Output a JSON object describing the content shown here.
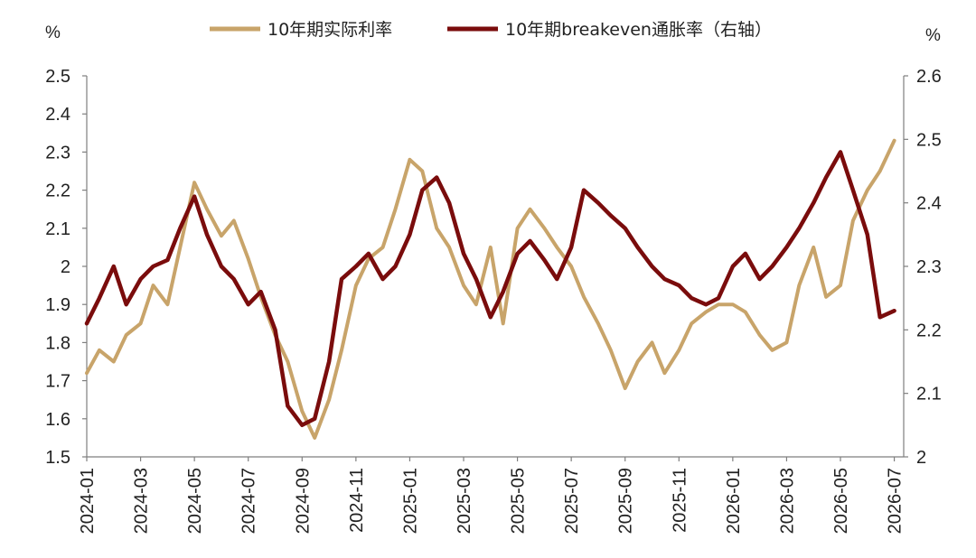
{
  "chart_data": {
    "type": "line",
    "left_unit": "%",
    "right_unit": "%",
    "y_left": {
      "min": 1.5,
      "max": 2.5,
      "ticks": [
        "1.5",
        "1.6",
        "1.7",
        "1.8",
        "1.9",
        "2",
        "2.1",
        "2.2",
        "2.3",
        "2.4",
        "2.5"
      ]
    },
    "y_right": {
      "min": 2.0,
      "max": 2.6,
      "ticks": [
        "2",
        "2.1",
        "2.2",
        "2.3",
        "2.4",
        "2.5",
        "2.6"
      ]
    },
    "x_ticks": [
      "2024-01",
      "2024-03",
      "2024-05",
      "2024-07",
      "2024-09",
      "2024-11",
      "2025-01",
      "2025-03",
      "2025-05",
      "2025-07",
      "2025-09",
      "2025-11",
      "2026-01",
      "2026-03",
      "2026-05",
      "2026-07"
    ],
    "x_range": [
      "2024-01",
      "2026-07"
    ],
    "series": [
      {
        "name": "10年期实际利率",
        "axis": "left",
        "color": "#c8a46a",
        "points": [
          [
            "2024-01",
            1.72
          ],
          [
            "2024-01-15",
            1.78
          ],
          [
            "2024-02",
            1.75
          ],
          [
            "2024-02-15",
            1.82
          ],
          [
            "2024-03",
            1.85
          ],
          [
            "2024-03-15",
            1.95
          ],
          [
            "2024-04",
            1.9
          ],
          [
            "2024-04-15",
            2.05
          ],
          [
            "2024-05",
            2.22
          ],
          [
            "2024-05-15",
            2.15
          ],
          [
            "2024-06",
            2.08
          ],
          [
            "2024-06-15",
            2.12
          ],
          [
            "2024-07",
            2.02
          ],
          [
            "2024-07-15",
            1.92
          ],
          [
            "2024-08",
            1.82
          ],
          [
            "2024-08-15",
            1.75
          ],
          [
            "2024-09",
            1.62
          ],
          [
            "2024-09-15",
            1.55
          ],
          [
            "2024-10",
            1.65
          ],
          [
            "2024-10-15",
            1.78
          ],
          [
            "2024-11",
            1.95
          ],
          [
            "2024-11-15",
            2.02
          ],
          [
            "2024-12",
            2.05
          ],
          [
            "2024-12-15",
            2.15
          ],
          [
            "2025-01",
            2.28
          ],
          [
            "2025-01-15",
            2.25
          ],
          [
            "2025-02",
            2.1
          ],
          [
            "2025-02-15",
            2.05
          ],
          [
            "2025-03",
            1.95
          ],
          [
            "2025-03-15",
            1.9
          ],
          [
            "2025-04",
            2.05
          ],
          [
            "2025-04-15",
            1.85
          ],
          [
            "2025-05",
            2.1
          ],
          [
            "2025-05-15",
            2.15
          ],
          [
            "2025-06",
            2.1
          ],
          [
            "2025-06-15",
            2.05
          ],
          [
            "2025-07",
            2.0
          ],
          [
            "2025-07-15",
            1.92
          ],
          [
            "2025-08",
            1.85
          ],
          [
            "2025-08-15",
            1.78
          ],
          [
            "2025-09",
            1.68
          ],
          [
            "2025-09-15",
            1.75
          ],
          [
            "2025-10",
            1.8
          ],
          [
            "2025-10-15",
            1.72
          ],
          [
            "2025-11",
            1.78
          ],
          [
            "2025-11-15",
            1.85
          ],
          [
            "2025-12",
            1.88
          ],
          [
            "2025-12-15",
            1.9
          ],
          [
            "2026-01",
            1.9
          ],
          [
            "2026-01-15",
            1.88
          ],
          [
            "2026-02",
            1.82
          ],
          [
            "2026-02-15",
            1.78
          ],
          [
            "2026-03",
            1.8
          ],
          [
            "2026-03-15",
            1.95
          ],
          [
            "2026-04",
            2.05
          ],
          [
            "2026-04-15",
            1.92
          ],
          [
            "2026-05",
            1.95
          ],
          [
            "2026-05-15",
            2.12
          ],
          [
            "2026-06",
            2.2
          ],
          [
            "2026-06-15",
            2.25
          ],
          [
            "2026-07",
            2.33
          ]
        ]
      },
      {
        "name": "10年期breakeven通胀率（右轴）",
        "axis": "right",
        "color": "#7a0c0c",
        "points": [
          [
            "2024-01",
            2.21
          ],
          [
            "2024-01-15",
            2.25
          ],
          [
            "2024-02",
            2.3
          ],
          [
            "2024-02-15",
            2.24
          ],
          [
            "2024-03",
            2.28
          ],
          [
            "2024-03-15",
            2.3
          ],
          [
            "2024-04",
            2.31
          ],
          [
            "2024-04-15",
            2.36
          ],
          [
            "2024-05",
            2.41
          ],
          [
            "2024-05-15",
            2.35
          ],
          [
            "2024-06",
            2.3
          ],
          [
            "2024-06-15",
            2.28
          ],
          [
            "2024-07",
            2.24
          ],
          [
            "2024-07-15",
            2.26
          ],
          [
            "2024-08",
            2.2
          ],
          [
            "2024-08-15",
            2.08
          ],
          [
            "2024-09",
            2.05
          ],
          [
            "2024-09-15",
            2.06
          ],
          [
            "2024-10",
            2.15
          ],
          [
            "2024-10-15",
            2.28
          ],
          [
            "2024-11",
            2.3
          ],
          [
            "2024-11-15",
            2.32
          ],
          [
            "2024-12",
            2.28
          ],
          [
            "2024-12-15",
            2.3
          ],
          [
            "2025-01",
            2.35
          ],
          [
            "2025-01-15",
            2.42
          ],
          [
            "2025-02",
            2.44
          ],
          [
            "2025-02-15",
            2.4
          ],
          [
            "2025-03",
            2.32
          ],
          [
            "2025-03-15",
            2.28
          ],
          [
            "2025-04",
            2.22
          ],
          [
            "2025-04-15",
            2.26
          ],
          [
            "2025-05",
            2.32
          ],
          [
            "2025-05-15",
            2.34
          ],
          [
            "2025-06",
            2.31
          ],
          [
            "2025-06-15",
            2.28
          ],
          [
            "2025-07",
            2.33
          ],
          [
            "2025-07-15",
            2.42
          ],
          [
            "2025-08",
            2.4
          ],
          [
            "2025-08-15",
            2.38
          ],
          [
            "2025-09",
            2.36
          ],
          [
            "2025-09-15",
            2.33
          ],
          [
            "2025-10",
            2.3
          ],
          [
            "2025-10-15",
            2.28
          ],
          [
            "2025-11",
            2.27
          ],
          [
            "2025-11-15",
            2.25
          ],
          [
            "2025-12",
            2.24
          ],
          [
            "2025-12-15",
            2.25
          ],
          [
            "2026-01",
            2.3
          ],
          [
            "2026-01-15",
            2.32
          ],
          [
            "2026-02",
            2.28
          ],
          [
            "2026-02-15",
            2.3
          ],
          [
            "2026-03",
            2.33
          ],
          [
            "2026-03-15",
            2.36
          ],
          [
            "2026-04",
            2.4
          ],
          [
            "2026-04-15",
            2.44
          ],
          [
            "2026-05",
            2.48
          ],
          [
            "2026-05-15",
            2.42
          ],
          [
            "2026-06",
            2.35
          ],
          [
            "2026-06-15",
            2.22
          ],
          [
            "2026-07",
            2.23
          ]
        ]
      }
    ],
    "legend": {
      "position": "top"
    },
    "grid": false
  }
}
